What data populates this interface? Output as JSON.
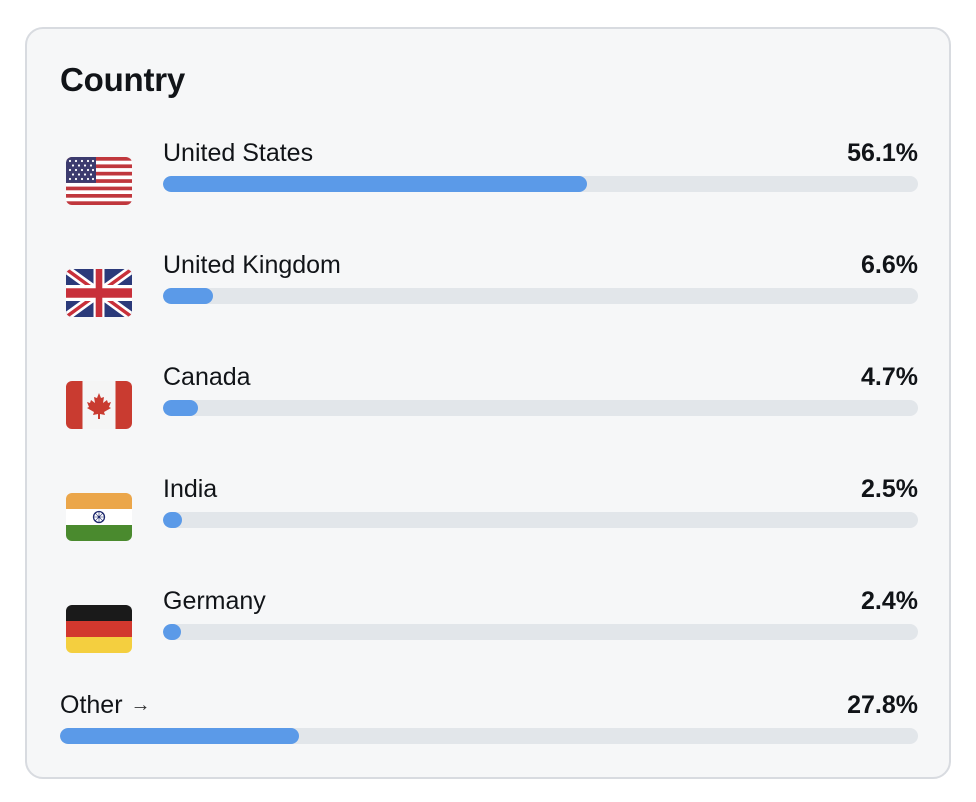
{
  "card": {
    "title": "Country"
  },
  "countries": [
    {
      "name": "United States",
      "percent_label": "56.1%",
      "value": 56.1,
      "flag": "us-flag-icon"
    },
    {
      "name": "United Kingdom",
      "percent_label": "6.6%",
      "value": 6.6,
      "flag": "uk-flag-icon"
    },
    {
      "name": "Canada",
      "percent_label": "4.7%",
      "value": 4.7,
      "flag": "canada-flag-icon"
    },
    {
      "name": "India",
      "percent_label": "2.5%",
      "value": 2.5,
      "flag": "india-flag-icon"
    },
    {
      "name": "Germany",
      "percent_label": "2.4%",
      "value": 2.4,
      "flag": "germany-flag-icon"
    }
  ],
  "other": {
    "label": "Other",
    "arrow": "→",
    "percent_label": "27.8%",
    "value": 27.8
  },
  "colors": {
    "bar_fill": "#5b9ae8",
    "bar_track": "#e2e6ea",
    "card_bg": "#f6f7f8"
  }
}
